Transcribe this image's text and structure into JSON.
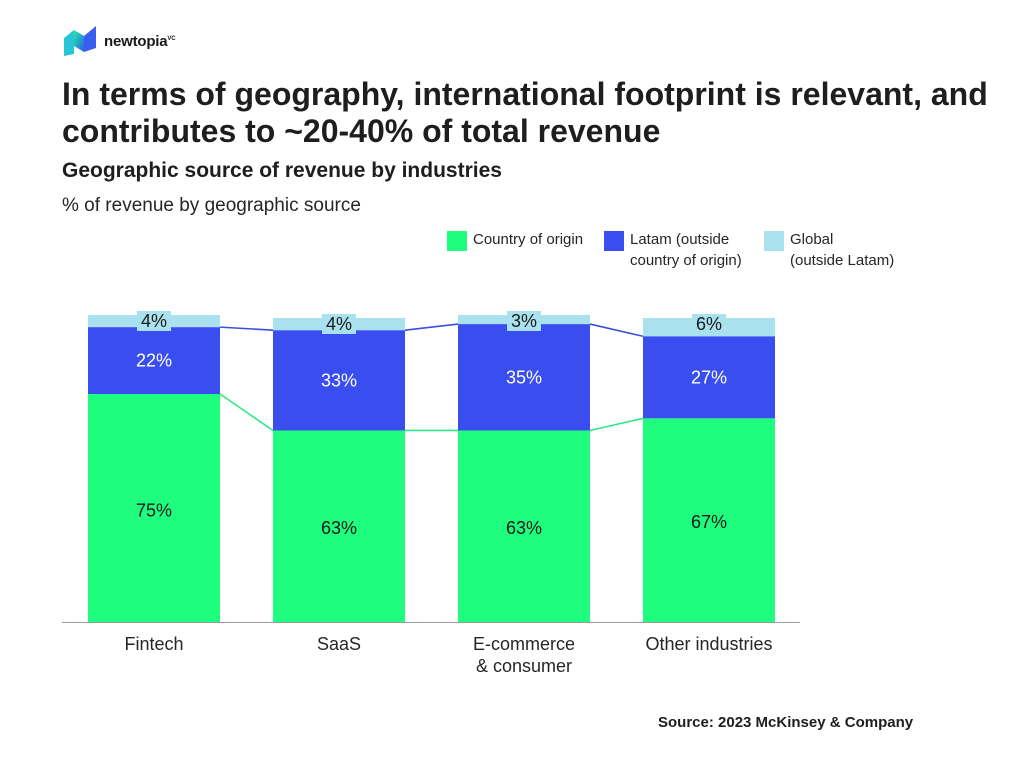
{
  "brand": {
    "name": "newtopia",
    "suffix": "VC",
    "icon": "newtopia-logo-icon"
  },
  "header": {
    "title": "In terms of geography, international footprint is relevant, and contributes to ~20-40% of total revenue",
    "subtitle": "Geographic source of revenue by industries",
    "caption": "% of revenue by geographic source"
  },
  "footer": {
    "source": "Source: 2023 McKinsey & Company"
  },
  "colors": {
    "country": "#1ffd7e",
    "latam": "#3a4ef0",
    "global": "#a9e1ee",
    "connector_country": "#2fe88a",
    "connector_latam": "#3a4ee0"
  },
  "chart_data": {
    "type": "bar",
    "stacked": true,
    "normalized": true,
    "categories": [
      "Fintech",
      "SaaS",
      "E-commerce\n& consumer",
      "Other industries"
    ],
    "series": [
      {
        "name": "Country of origin",
        "values": [
          75,
          63,
          63,
          67
        ],
        "labels": [
          "75%",
          "63%",
          "63%",
          "67%"
        ]
      },
      {
        "name": "Latam (outside\ncountry of origin)",
        "values": [
          22,
          33,
          35,
          27
        ],
        "labels": [
          "22%",
          "33%",
          "35%",
          "27%"
        ]
      },
      {
        "name": "Global\n(outside Latam)",
        "values": [
          4,
          4,
          3,
          6
        ],
        "labels": [
          "4%",
          "4%",
          "3%",
          "6%"
        ]
      }
    ],
    "ylim": [
      0,
      100
    ],
    "grid": false,
    "legend_position": "top-right",
    "connector_lines": true
  }
}
